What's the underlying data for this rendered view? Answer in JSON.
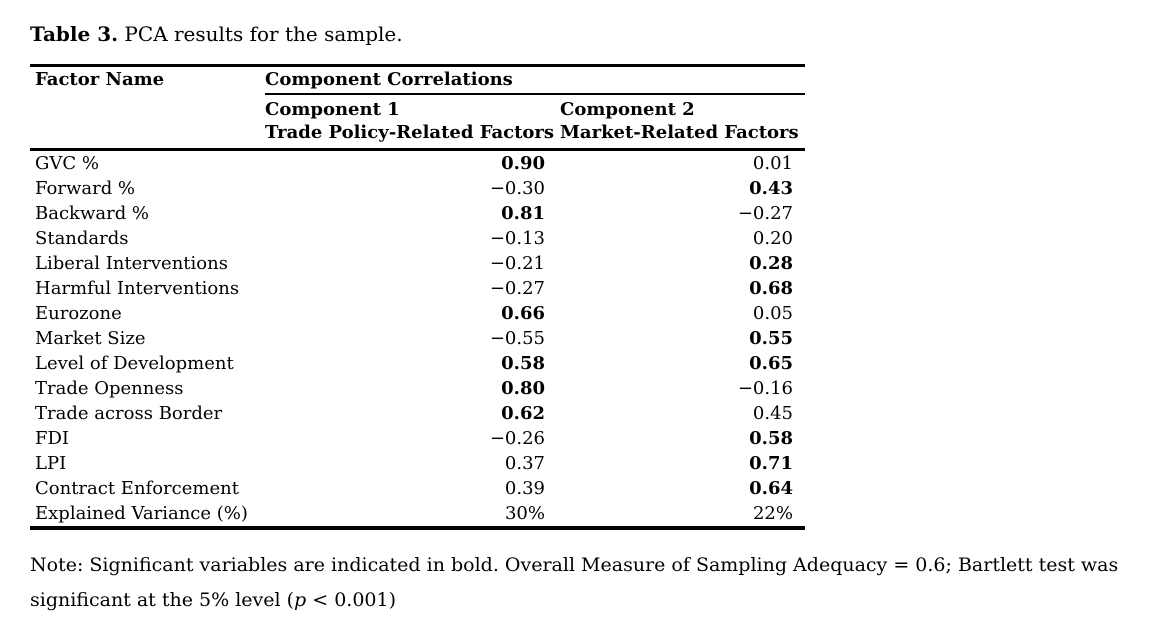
{
  "title": {
    "label": "Table 3.",
    "text": " PCA results for the sample."
  },
  "table": {
    "header": {
      "factor_name": "Factor Name",
      "group": "Component Correlations",
      "col1_line1": "Component 1",
      "col1_line2": "Trade Policy-Related Factors",
      "col2_line1": "Component 2",
      "col2_line2": "Market-Related Factors"
    },
    "rows": [
      {
        "factor": "GVC %",
        "c1": "0.90",
        "c1_bold": true,
        "c2": "0.01",
        "c2_bold": false
      },
      {
        "factor": "Forward %",
        "c1": "−0.30",
        "c1_bold": false,
        "c2": "0.43",
        "c2_bold": true
      },
      {
        "factor": "Backward %",
        "c1": "0.81",
        "c1_bold": true,
        "c2": "−0.27",
        "c2_bold": false
      },
      {
        "factor": "Standards",
        "c1": "−0.13",
        "c1_bold": false,
        "c2": "0.20",
        "c2_bold": false
      },
      {
        "factor": "Liberal Interventions",
        "c1": "−0.21",
        "c1_bold": false,
        "c2": "0.28",
        "c2_bold": true
      },
      {
        "factor": "Harmful Interventions",
        "c1": "−0.27",
        "c1_bold": false,
        "c2": "0.68",
        "c2_bold": true
      },
      {
        "factor": "Eurozone",
        "c1": "0.66",
        "c1_bold": true,
        "c2": "0.05",
        "c2_bold": false
      },
      {
        "factor": "Market Size",
        "c1": "−0.55",
        "c1_bold": false,
        "c2": "0.55",
        "c2_bold": true
      },
      {
        "factor": "Level of Development",
        "c1": "0.58",
        "c1_bold": true,
        "c2": "0.65",
        "c2_bold": true
      },
      {
        "factor": "Trade Openness",
        "c1": "0.80",
        "c1_bold": true,
        "c2": "−0.16",
        "c2_bold": false
      },
      {
        "factor": "Trade across Border",
        "c1": "0.62",
        "c1_bold": true,
        "c2": "0.45",
        "c2_bold": false
      },
      {
        "factor": "FDI",
        "c1": "−0.26",
        "c1_bold": false,
        "c2": "0.58",
        "c2_bold": true
      },
      {
        "factor": "LPI",
        "c1": "0.37",
        "c1_bold": false,
        "c2": "0.71",
        "c2_bold": true
      },
      {
        "factor": "Contract Enforcement",
        "c1": "0.39",
        "c1_bold": false,
        "c2": "0.64",
        "c2_bold": true
      },
      {
        "factor": "Explained Variance (%)",
        "c1": "30%",
        "c1_bold": false,
        "c2": "22%",
        "c2_bold": false
      }
    ]
  },
  "note": {
    "line1": "Note: Significant variables are indicated in bold. Overall Measure of Sampling Adequacy = 0.6; Bartlett test was",
    "line2_pre": "significant at the 5% level (",
    "line2_italic": "p",
    "line2_post": " < 0.001)"
  }
}
